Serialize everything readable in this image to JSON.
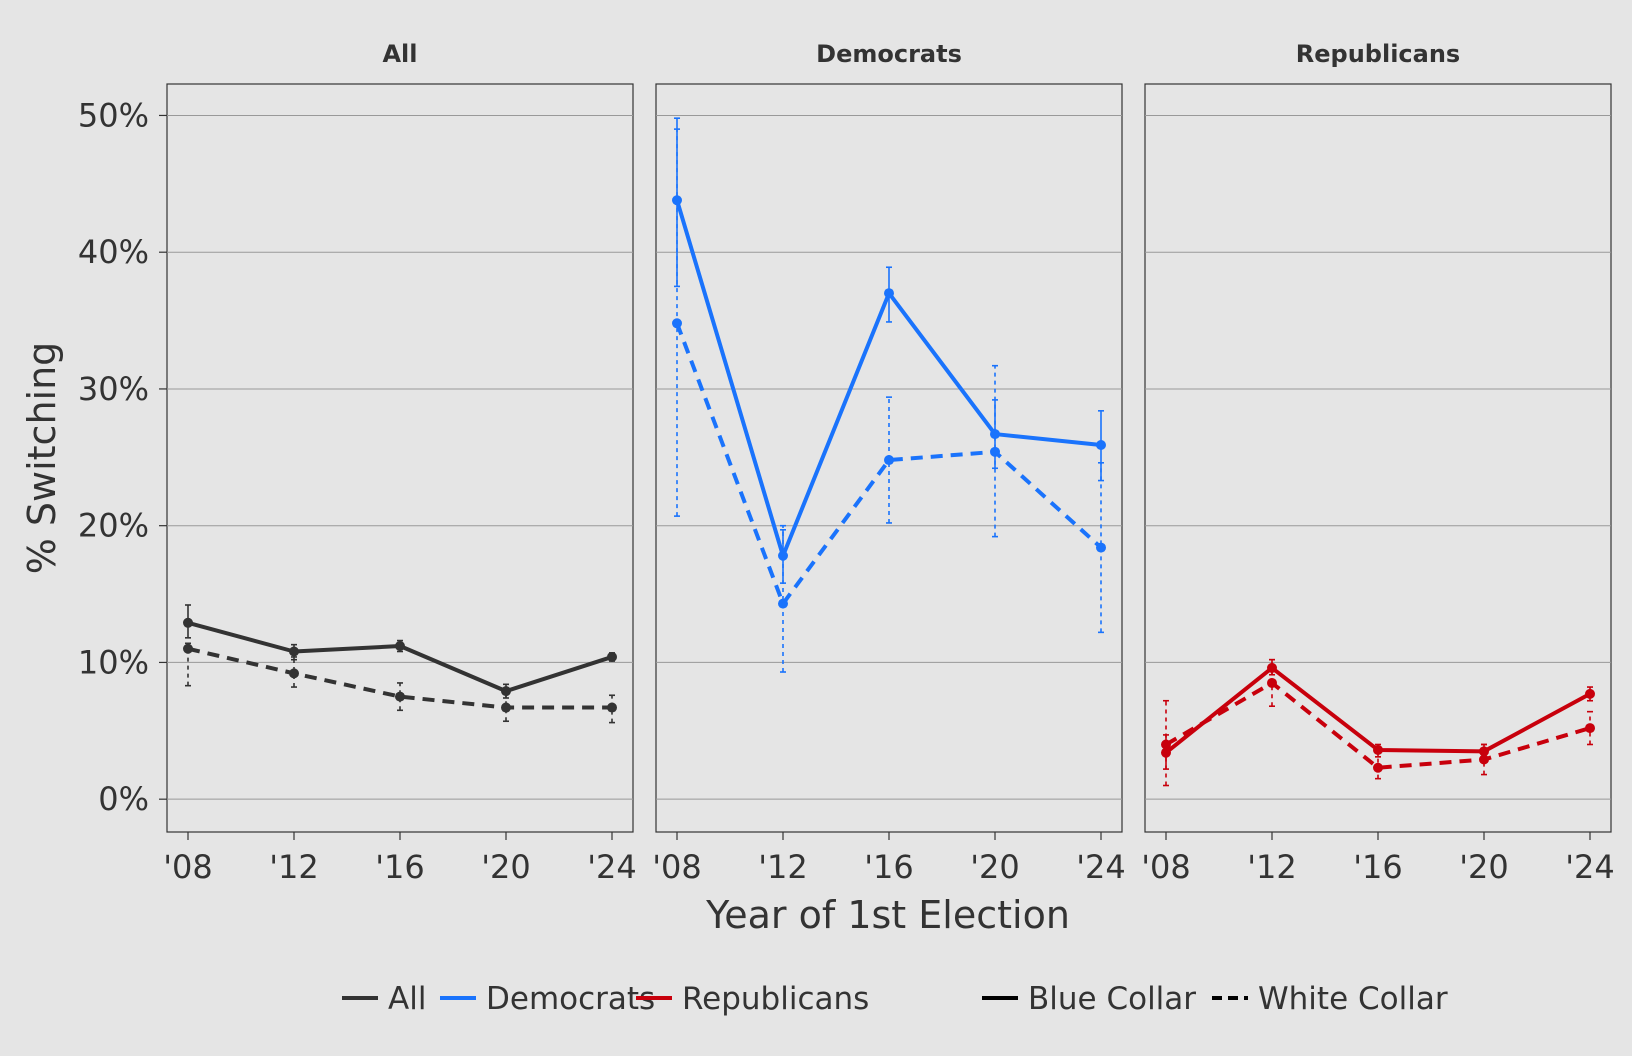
{
  "chart_data": {
    "type": "line",
    "ylabel": "% Switching",
    "xlabel": "Year of 1st Election",
    "x": [
      "'08",
      "'12",
      "'16",
      "'20",
      "'24"
    ],
    "y_ticks": [
      "0%",
      "10%",
      "20%",
      "30%",
      "40%",
      "50%"
    ],
    "ylim": [
      -2.4,
      52.3
    ],
    "grid": true,
    "legend_position": "bottom",
    "colors": {
      "All": "#333333",
      "Democrats": "#1a73fc",
      "Republicans": "#c8000c",
      "background": "#e5e5e5",
      "grid": "#999999"
    },
    "panels": [
      {
        "title": "All",
        "group": "All",
        "series": [
          {
            "name": "Blue Collar",
            "linetype": "solid",
            "values": [
              12.9,
              10.8,
              11.2,
              7.9,
              10.4
            ],
            "err_low": [
              11.8,
              10.2,
              10.8,
              7.4,
              10.1
            ],
            "err_high": [
              14.2,
              11.3,
              11.6,
              8.4,
              10.7
            ]
          },
          {
            "name": "White Collar",
            "linetype": "dashed",
            "values": [
              11.0,
              9.2,
              7.5,
              6.7,
              6.7
            ],
            "err_low": [
              8.3,
              8.2,
              6.5,
              5.7,
              5.6
            ],
            "err_high": [
              11.4,
              10.4,
              8.5,
              7.7,
              7.6
            ]
          }
        ]
      },
      {
        "title": "Democrats",
        "group": "Democrats",
        "series": [
          {
            "name": "Blue Collar",
            "linetype": "solid",
            "values": [
              43.8,
              17.8,
              37.0,
              26.7,
              25.9
            ],
            "err_low": [
              37.5,
              15.8,
              34.9,
              24.2,
              23.3
            ],
            "err_high": [
              49.8,
              19.7,
              38.9,
              29.2,
              28.4
            ]
          },
          {
            "name": "White Collar",
            "linetype": "dashed",
            "values": [
              34.8,
              14.3,
              24.8,
              25.4,
              18.4
            ],
            "err_low": [
              20.7,
              9.3,
              20.2,
              19.2,
              12.2
            ],
            "err_high": [
              49.0,
              20.0,
              29.4,
              31.7,
              24.6
            ]
          }
        ]
      },
      {
        "title": "Republicans",
        "group": "Republicans",
        "series": [
          {
            "name": "Blue Collar",
            "linetype": "solid",
            "values": [
              3.4,
              9.6,
              3.6,
              3.5,
              7.7
            ],
            "err_low": [
              2.2,
              9.1,
              3.1,
              3.0,
              7.2
            ],
            "err_high": [
              4.7,
              10.2,
              4.0,
              4.0,
              8.2
            ]
          },
          {
            "name": "White Collar",
            "linetype": "dashed",
            "values": [
              4.0,
              8.5,
              2.3,
              2.9,
              5.2
            ],
            "err_low": [
              1.0,
              6.8,
              1.5,
              1.8,
              4.0
            ],
            "err_high": [
              7.2,
              10.2,
              3.1,
              4.0,
              6.4
            ]
          }
        ]
      }
    ],
    "legend": {
      "groups": [
        "All",
        "Democrats",
        "Republicans"
      ],
      "linetypes": [
        {
          "label": "Blue Collar",
          "dash": "solid"
        },
        {
          "label": "White Collar",
          "dash": "dashed"
        }
      ]
    }
  }
}
